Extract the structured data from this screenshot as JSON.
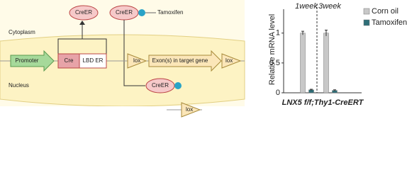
{
  "diagram": {
    "creer": [
      "CreER",
      "CreER",
      "CreER"
    ],
    "tamoxifen": "Tamoxifen",
    "cytoplasm": "Cytoplasm",
    "nucleus": "Nucleus",
    "promoter": "Promoter",
    "cre": "Cre",
    "lbd_er": "LBD ER",
    "lox": [
      "lox",
      "lox",
      "lox"
    ],
    "exon": "Exon(s) in target gene"
  },
  "chart_data": {
    "type": "bar",
    "y_label": "Relative mRNA level",
    "x_label": "LNX5 f/f;Thy1-CreERT",
    "categories": [
      "1week",
      "3week"
    ],
    "series": [
      {
        "name": "Corn oil",
        "color": "#c8c8c8",
        "values": [
          1,
          1
        ],
        "errors": [
          0.03,
          0.05
        ]
      },
      {
        "name": "Tamoxifen",
        "color": "#2f6f78",
        "values": [
          0.05,
          0.04
        ],
        "errors": [
          0.01,
          0.01
        ]
      }
    ],
    "ylim": [
      0,
      1.4
    ],
    "yticks": [
      0,
      0.5,
      1
    ],
    "legend": "upper right"
  }
}
